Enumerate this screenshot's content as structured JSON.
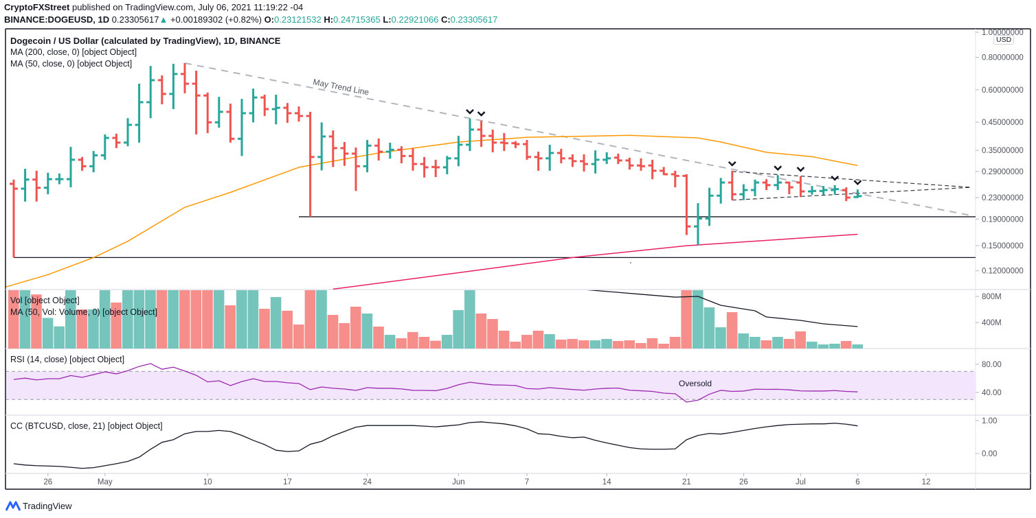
{
  "header": {
    "author": "CryptoFXStreet",
    "published": " published on TradingView.com, July 06, 2021 11:19:22 -04",
    "symbol": "BINANCE:DOGEUSD, 1D",
    "last": "0.23305617",
    "change": "+0.00189302 (+0.82%)",
    "o_label": "O:",
    "o": "0.23121532",
    "h_label": "H:",
    "h": "0.24715365",
    "l_label": "L:",
    "l": "0.22921066",
    "c_label": "C:",
    "c": "0.23305617",
    "direction_icon": "triangle-up-icon"
  },
  "legends": {
    "title": "Dogecoin / US Dollar (calculated by TradingView), 1D, BINANCE",
    "ma200": "MA (200, close, 0) [object Object]",
    "ma50": "MA (50, close, 0) [object Object]",
    "vol": "Vol [object Object]",
    "vol_ma": "MA (50, Vol: Volume, 0) [object Object]",
    "rsi": "RSI (14, close) [object Object]",
    "cc": "CC (BTCUSD, close, 21) [object Object]"
  },
  "currency_badge": "USD",
  "footer": {
    "brand": "TradingView"
  },
  "colors": {
    "up": "#26a69a",
    "down": "#ef5350",
    "ma50": "#ff9800",
    "ma200": "#e91e63",
    "rsi": "#9c27b0",
    "rsi_band": "#f3e5fc",
    "trend": "#b2b5be"
  },
  "chart_data": {
    "type": "ohlc",
    "scale": "log",
    "price_ticks": [
      "1.00000000",
      "0.80000000",
      "0.60000000",
      "0.45000000",
      "0.35000000",
      "0.29000000",
      "0.23000000",
      "0.19000000",
      "0.15000000",
      "0.12000000"
    ],
    "time_ticks": [
      [
        "2021-04-26",
        "26"
      ],
      [
        "2021-05-01",
        "May"
      ],
      [
        "2021-05-10",
        "10"
      ],
      [
        "2021-05-17",
        "17"
      ],
      [
        "2021-05-24",
        "24"
      ],
      [
        "2021-06-01",
        "Jun"
      ],
      [
        "2021-06-07",
        "7"
      ],
      [
        "2021-06-14",
        "14"
      ],
      [
        "2021-06-21",
        "21"
      ],
      [
        "2021-06-26",
        "26"
      ],
      [
        "2021-07-01",
        "Jul"
      ],
      [
        "2021-07-06",
        "6"
      ],
      [
        "2021-07-12",
        "12"
      ]
    ],
    "bars": [
      [
        "2021-04-23",
        0.26,
        0.27,
        0.135,
        0.249
      ],
      [
        "2021-04-24",
        0.249,
        0.297,
        0.222,
        0.27
      ],
      [
        "2021-04-25",
        0.27,
        0.292,
        0.222,
        0.251
      ],
      [
        "2021-04-26",
        0.251,
        0.287,
        0.237,
        0.271
      ],
      [
        "2021-04-27",
        0.271,
        0.285,
        0.259,
        0.271
      ],
      [
        "2021-04-28",
        0.271,
        0.361,
        0.252,
        0.322
      ],
      [
        "2021-04-29",
        0.322,
        0.33,
        0.292,
        0.304
      ],
      [
        "2021-04-30",
        0.304,
        0.348,
        0.288,
        0.335
      ],
      [
        "2021-05-01",
        0.335,
        0.403,
        0.322,
        0.391
      ],
      [
        "2021-05-02",
        0.391,
        0.406,
        0.357,
        0.375
      ],
      [
        "2021-05-03",
        0.375,
        0.466,
        0.363,
        0.439
      ],
      [
        "2021-05-04",
        0.439,
        0.633,
        0.375,
        0.537
      ],
      [
        "2021-05-05",
        0.537,
        0.741,
        0.466,
        0.653
      ],
      [
        "2021-05-06",
        0.653,
        0.681,
        0.527,
        0.578
      ],
      [
        "2021-05-07",
        0.578,
        0.755,
        0.505,
        0.69
      ],
      [
        "2021-05-08",
        0.69,
        0.76,
        0.581,
        0.633
      ],
      [
        "2021-05-09",
        0.633,
        0.711,
        0.403,
        0.57
      ],
      [
        "2021-05-10",
        0.57,
        0.585,
        0.408,
        0.449
      ],
      [
        "2021-05-11",
        0.449,
        0.563,
        0.428,
        0.493
      ],
      [
        "2021-05-12",
        0.493,
        0.53,
        0.375,
        0.388
      ],
      [
        "2021-05-13",
        0.388,
        0.553,
        0.333,
        0.487
      ],
      [
        "2021-05-14",
        0.487,
        0.606,
        0.449,
        0.56
      ],
      [
        "2021-05-15",
        0.56,
        0.574,
        0.475,
        0.505
      ],
      [
        "2021-05-16",
        0.505,
        0.574,
        0.441,
        0.511
      ],
      [
        "2021-05-17",
        0.511,
        0.533,
        0.447,
        0.487
      ],
      [
        "2021-05-18",
        0.487,
        0.517,
        0.452,
        0.475
      ],
      [
        "2021-05-19",
        0.475,
        0.493,
        0.194,
        0.33
      ],
      [
        "2021-05-20",
        0.33,
        0.449,
        0.293,
        0.396
      ],
      [
        "2021-05-21",
        0.396,
        0.418,
        0.302,
        0.357
      ],
      [
        "2021-05-22",
        0.357,
        0.377,
        0.305,
        0.34
      ],
      [
        "2021-05-23",
        0.34,
        0.359,
        0.244,
        0.304
      ],
      [
        "2021-05-24",
        0.304,
        0.384,
        0.288,
        0.365
      ],
      [
        "2021-05-25",
        0.365,
        0.389,
        0.32,
        0.346
      ],
      [
        "2021-05-26",
        0.346,
        0.375,
        0.325,
        0.352
      ],
      [
        "2021-05-27",
        0.352,
        0.363,
        0.312,
        0.333
      ],
      [
        "2021-05-28",
        0.333,
        0.357,
        0.292,
        0.31
      ],
      [
        "2021-05-29",
        0.31,
        0.33,
        0.275,
        0.301
      ],
      [
        "2021-05-30",
        0.302,
        0.322,
        0.276,
        0.301
      ],
      [
        "2021-05-31",
        0.301,
        0.333,
        0.283,
        0.326
      ],
      [
        "2021-06-01",
        0.326,
        0.398,
        0.304,
        0.368
      ],
      [
        "2021-06-02",
        0.368,
        0.464,
        0.348,
        0.421
      ],
      [
        "2021-06-03",
        0.421,
        0.455,
        0.361,
        0.398
      ],
      [
        "2021-06-04",
        0.398,
        0.421,
        0.344,
        0.375
      ],
      [
        "2021-06-05",
        0.375,
        0.408,
        0.348,
        0.373
      ],
      [
        "2021-06-06",
        0.373,
        0.38,
        0.357,
        0.37
      ],
      [
        "2021-06-07",
        0.37,
        0.384,
        0.322,
        0.33
      ],
      [
        "2021-06-08",
        0.33,
        0.346,
        0.292,
        0.326
      ],
      [
        "2021-06-09",
        0.326,
        0.368,
        0.292,
        0.342
      ],
      [
        "2021-06-10",
        0.342,
        0.355,
        0.312,
        0.326
      ],
      [
        "2021-06-11",
        0.326,
        0.338,
        0.302,
        0.318
      ],
      [
        "2021-06-12",
        0.318,
        0.338,
        0.29,
        0.31
      ],
      [
        "2021-06-13",
        0.31,
        0.35,
        0.285,
        0.322
      ],
      [
        "2021-06-14",
        0.322,
        0.344,
        0.31,
        0.326
      ],
      [
        "2021-06-15",
        0.328,
        0.34,
        0.31,
        0.32
      ],
      [
        "2021-06-16",
        0.32,
        0.328,
        0.295,
        0.306
      ],
      [
        "2021-06-17",
        0.306,
        0.326,
        0.292,
        0.304
      ],
      [
        "2021-06-18",
        0.306,
        0.322,
        0.271,
        0.292
      ],
      [
        "2021-06-19",
        0.292,
        0.302,
        0.281,
        0.283
      ],
      [
        "2021-06-20",
        0.283,
        0.292,
        0.252,
        0.279
      ],
      [
        "2021-06-21",
        0.279,
        0.283,
        0.165,
        0.178
      ],
      [
        "2021-06-22",
        0.178,
        0.219,
        0.151,
        0.191
      ],
      [
        "2021-06-23",
        0.191,
        0.251,
        0.179,
        0.234
      ],
      [
        "2021-06-24",
        0.234,
        0.274,
        0.218,
        0.263
      ],
      [
        "2021-06-25",
        0.263,
        0.292,
        0.225,
        0.237
      ],
      [
        "2021-06-26",
        0.237,
        0.259,
        0.225,
        0.246
      ],
      [
        "2021-06-27",
        0.246,
        0.27,
        0.233,
        0.263
      ],
      [
        "2021-06-28",
        0.263,
        0.271,
        0.246,
        0.257
      ],
      [
        "2021-06-29",
        0.257,
        0.281,
        0.246,
        0.263
      ],
      [
        "2021-06-30",
        0.263,
        0.265,
        0.237,
        0.252
      ],
      [
        "2021-07-01",
        0.263,
        0.278,
        0.231,
        0.243
      ],
      [
        "2021-07-02",
        0.243,
        0.255,
        0.236,
        0.244
      ],
      [
        "2021-07-03",
        0.244,
        0.255,
        0.236,
        0.246
      ],
      [
        "2021-07-04",
        0.246,
        0.257,
        0.236,
        0.248
      ],
      [
        "2021-07-05",
        0.246,
        0.252,
        0.223,
        0.23
      ],
      [
        "2021-07-06",
        0.23121532,
        0.24715365,
        0.22921066,
        0.23305617
      ]
    ],
    "ma50": [
      [
        "2021-04-22",
        0.103
      ],
      [
        "2021-04-26",
        0.116
      ],
      [
        "2021-04-30",
        0.135
      ],
      [
        "2021-05-03",
        0.156
      ],
      [
        "2021-05-06",
        0.187
      ],
      [
        "2021-05-08",
        0.211
      ],
      [
        "2021-05-12",
        0.241
      ],
      [
        "2021-05-18",
        0.301
      ],
      [
        "2021-05-25",
        0.342
      ],
      [
        "2021-06-01",
        0.377
      ],
      [
        "2021-06-07",
        0.393
      ],
      [
        "2021-06-16",
        0.4
      ],
      [
        "2021-06-22",
        0.391
      ],
      [
        "2021-06-24",
        0.377
      ],
      [
        "2021-06-28",
        0.344
      ],
      [
        "2021-07-02",
        0.331
      ],
      [
        "2021-07-06",
        0.306
      ]
    ],
    "ma200": [
      [
        "2021-05-21",
        0.102
      ],
      [
        "2021-06-01",
        0.118
      ],
      [
        "2021-06-11",
        0.135
      ],
      [
        "2021-06-21",
        0.15
      ],
      [
        "2021-07-06",
        0.166
      ]
    ],
    "horizontal_levels": [
      {
        "price": 0.135,
        "from": "2021-04-23"
      },
      {
        "price": 0.194,
        "from": "2021-05-18"
      }
    ],
    "trend_lines": [
      {
        "label": "May Trend Line",
        "style": "dashed-gray",
        "from": [
          "2021-05-08",
          0.76
        ],
        "to": [
          "2021-07-16",
          0.196
        ]
      },
      {
        "label": "",
        "style": "dashed-black",
        "from": [
          "2021-06-25",
          0.29
        ],
        "to": [
          "2021-07-16",
          0.252
        ]
      },
      {
        "label": "",
        "style": "dashed-black",
        "from": [
          "2021-06-25",
          0.225
        ],
        "to": [
          "2021-07-16",
          0.252
        ]
      }
    ],
    "rejection_marks": [
      "2021-06-02",
      "2021-06-03",
      "2021-06-25",
      "2021-06-29",
      "2021-07-01",
      "2021-07-04",
      "2021-07-06"
    ],
    "volume": {
      "unit": "M",
      "ticks": [
        "800M",
        "400M"
      ],
      "values": [
        1000,
        1000,
        830,
        470,
        340,
        1000,
        600,
        600,
        1000,
        705,
        1000,
        1000,
        1000,
        1000,
        1000,
        1000,
        1000,
        1000,
        1000,
        663,
        1000,
        1000,
        610,
        790,
        580,
        368,
        1000,
        1000,
        516,
        390,
        642,
        537,
        337,
        210,
        158,
        253,
        179,
        120,
        210,
        590,
        1000,
        537,
        453,
        274,
        105,
        210,
        274,
        221,
        137,
        147,
        126,
        126,
        147,
        116,
        126,
        84,
        158,
        74,
        179,
        1000,
        1000,
        632,
        326,
        558,
        232,
        179,
        126,
        179,
        147,
        263,
        105,
        63,
        74,
        116,
        63
      ],
      "ma50": [
        [
          "2021-06-12",
          905
        ],
        [
          "2021-06-17",
          832
        ],
        [
          "2021-06-20",
          789
        ],
        [
          "2021-06-22",
          800
        ],
        [
          "2021-06-24",
          663
        ],
        [
          "2021-06-27",
          579
        ],
        [
          "2021-06-28",
          484
        ],
        [
          "2021-07-01",
          432
        ],
        [
          "2021-07-03",
          379
        ],
        [
          "2021-07-06",
          337
        ]
      ]
    },
    "rsi": {
      "ticks": [
        "80.00",
        "40.00"
      ],
      "band": [
        30,
        70
      ],
      "annotation": "Oversold",
      "values": [
        58.5,
        60.3,
        57.8,
        59.5,
        59.5,
        64,
        61.5,
        65.3,
        69.3,
        66.4,
        71,
        77,
        81,
        73,
        76,
        70.5,
        64.4,
        55,
        56.6,
        49.8,
        55.5,
        59.5,
        55.6,
        55.6,
        53.8,
        52.7,
        44,
        47.8,
        46,
        44.9,
        42.9,
        46.8,
        45.9,
        45.9,
        45,
        43,
        42.9,
        42.5,
        45.7,
        51,
        54.5,
        52.5,
        50.8,
        50.5,
        49.9,
        45.5,
        44.9,
        46.8,
        45.5,
        44.2,
        43.2,
        44.9,
        45.9,
        46.2,
        43.2,
        42.4,
        41.5,
        39,
        38.2,
        26.3,
        29,
        37.5,
        43,
        41.5,
        42,
        44.6,
        44.4,
        44.5,
        43.7,
        42.2,
        42,
        42,
        42.7,
        41.5,
        40.8
      ]
    },
    "cc": {
      "ticks": [
        "1.00",
        "0.00"
      ],
      "values": [
        -0.31,
        -0.35,
        -0.37,
        -0.38,
        -0.39,
        -0.42,
        -0.45,
        -0.43,
        -0.37,
        -0.31,
        -0.24,
        -0.11,
        0.13,
        0.34,
        0.42,
        0.6,
        0.67,
        0.67,
        0.7,
        0.67,
        0.55,
        0.4,
        0.27,
        0.1,
        0.06,
        0.08,
        0.28,
        0.37,
        0.54,
        0.67,
        0.8,
        0.85,
        0.85,
        0.85,
        0.85,
        0.85,
        0.83,
        0.81,
        0.84,
        0.87,
        0.94,
        0.96,
        0.93,
        0.9,
        0.84,
        0.75,
        0.6,
        0.58,
        0.52,
        0.48,
        0.5,
        0.4,
        0.32,
        0.25,
        0.18,
        0.14,
        0.13,
        0.13,
        0.14,
        0.42,
        0.55,
        0.61,
        0.59,
        0.64,
        0.7,
        0.76,
        0.81,
        0.85,
        0.88,
        0.89,
        0.9,
        0.9,
        0.92,
        0.89,
        0.84
      ]
    }
  }
}
